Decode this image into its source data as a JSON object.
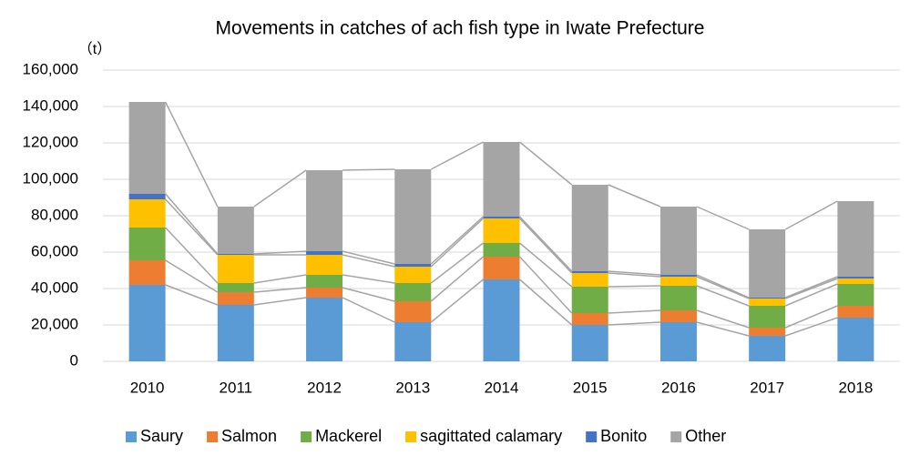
{
  "chart_data": {
    "type": "stacked_bar",
    "title": "Movements in catches of ach fish type in Iwate Prefecture",
    "y_unit": "（t）",
    "categories": [
      "2010",
      "2011",
      "2012",
      "2013",
      "2014",
      "2015",
      "2016",
      "2017",
      "2018"
    ],
    "series": [
      {
        "name": "Saury",
        "color": "#5b9bd5",
        "values": [
          42000,
          31000,
          35000,
          21500,
          45000,
          20000,
          21500,
          14000,
          24000
        ]
      },
      {
        "name": "Salmon",
        "color": "#ed7d31",
        "values": [
          13500,
          7000,
          5500,
          11500,
          12500,
          6500,
          6500,
          4500,
          6500
        ]
      },
      {
        "name": "Mackerel",
        "color": "#70ad47",
        "values": [
          18000,
          5000,
          7000,
          10000,
          7500,
          14500,
          13500,
          12000,
          12000
        ]
      },
      {
        "name": "sagittated calamary",
        "color": "#ffc000",
        "values": [
          15500,
          15500,
          11000,
          9000,
          13500,
          7500,
          5000,
          4000,
          3000
        ]
      },
      {
        "name": "Bonito",
        "color": "#4472c4",
        "values": [
          3000,
          500,
          2000,
          1500,
          1000,
          1000,
          1000,
          500,
          1000
        ]
      },
      {
        "name": "Other",
        "color": "#a5a5a5",
        "values": [
          50500,
          26000,
          44500,
          52000,
          41000,
          47500,
          37500,
          37500,
          41500
        ]
      }
    ],
    "ylim": [
      0,
      160000
    ],
    "yticks": [
      0,
      {
        "value": 20000,
        "label": "20,000"
      },
      {
        "value": 40000,
        "label": "40,000"
      },
      {
        "value": 60000,
        "label": "60,000"
      },
      {
        "value": 80000,
        "label": "80,000"
      },
      {
        "value": 100000,
        "label": "100,000"
      },
      {
        "value": 120000,
        "label": "120,000"
      },
      {
        "value": 140000,
        "label": "140,000"
      },
      {
        "value": 160000,
        "label": "160,000"
      }
    ],
    "grid": true,
    "series_lines": true,
    "legend": "bottom"
  }
}
